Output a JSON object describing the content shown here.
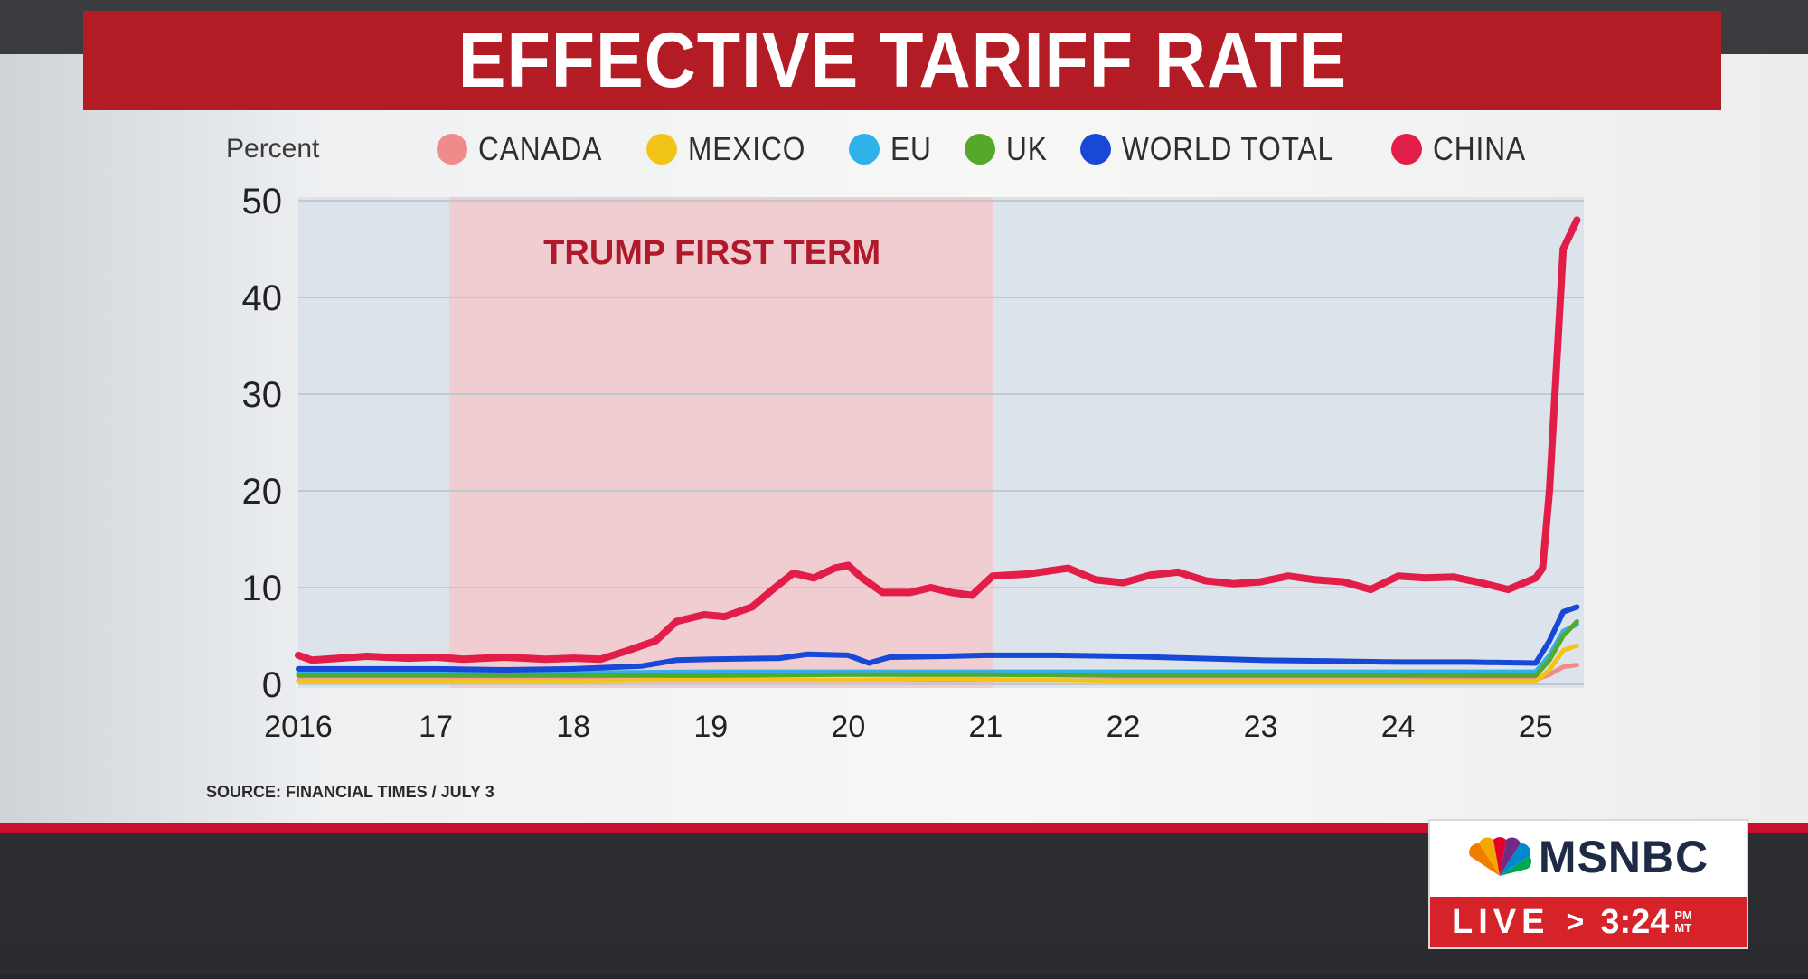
{
  "title": "EFFECTIVE TARIFF RATE",
  "unit_label": "Percent",
  "annotation": "TRUMP FIRST TERM",
  "source": "SOURCE: FINANCIAL TIMES / JULY 3",
  "logo": {
    "network": "MSNBC",
    "live": "LIVE",
    "arrow": ">",
    "time": "3:24",
    "ampm_top": "PM",
    "ampm_bottom": "MT"
  },
  "colors": {
    "title_banner": "#b31b25",
    "shaded_region": "#f2c9cc",
    "plot_background": "#dde3ea"
  },
  "legend": [
    {
      "name": "CANADA",
      "color": "#ef8b8b"
    },
    {
      "name": "MEXICO",
      "color": "#f2c418"
    },
    {
      "name": "EU",
      "color": "#2fb2ea"
    },
    {
      "name": "UK",
      "color": "#56a82a"
    },
    {
      "name": "WORLD TOTAL",
      "color": "#1748d6"
    },
    {
      "name": "CHINA",
      "color": "#e11d48"
    }
  ],
  "chart_data": {
    "type": "line",
    "title": "EFFECTIVE TARIFF RATE",
    "ylabel": "Percent",
    "xlim": [
      2016,
      2025.35
    ],
    "ylim": [
      0,
      50
    ],
    "yticks": [
      0,
      10,
      20,
      30,
      40,
      50
    ],
    "xticks": [
      {
        "value": 2016,
        "label": "2016"
      },
      {
        "value": 2017,
        "label": "17"
      },
      {
        "value": 2018,
        "label": "18"
      },
      {
        "value": 2019,
        "label": "19"
      },
      {
        "value": 2020,
        "label": "20"
      },
      {
        "value": 2021,
        "label": "21"
      },
      {
        "value": 2022,
        "label": "22"
      },
      {
        "value": 2023,
        "label": "23"
      },
      {
        "value": 2024,
        "label": "24"
      },
      {
        "value": 2025,
        "label": "25"
      }
    ],
    "grid": true,
    "legend_position": "top",
    "shaded_regions": [
      {
        "start": 2017.1,
        "end": 2021.05,
        "label": "TRUMP FIRST TERM"
      }
    ],
    "series": [
      {
        "name": "CANADA",
        "color": "#ef8b8b",
        "x": [
          2016,
          2017,
          2018,
          2019,
          2020,
          2021,
          2022,
          2023,
          2024,
          2025,
          2025.1,
          2025.2,
          2025.3
        ],
        "y": [
          0.4,
          0.4,
          0.4,
          0.4,
          0.4,
          0.4,
          0.4,
          0.4,
          0.4,
          0.5,
          1.0,
          1.8,
          2.0
        ]
      },
      {
        "name": "MEXICO",
        "color": "#f2c418",
        "x": [
          2016,
          2017,
          2018,
          2018.5,
          2019,
          2020,
          2020.7,
          2021,
          2022,
          2023,
          2024,
          2025,
          2025.1,
          2025.2,
          2025.3
        ],
        "y": [
          0.3,
          0.3,
          0.3,
          0.4,
          0.5,
          0.4,
          0.6,
          0.5,
          0.3,
          0.3,
          0.3,
          0.3,
          1.5,
          3.5,
          4.0
        ]
      },
      {
        "name": "EU",
        "color": "#2fb2ea",
        "x": [
          2016,
          2017,
          2018,
          2019,
          2020,
          2021,
          2022,
          2023,
          2024,
          2025,
          2025.1,
          2025.2,
          2025.3
        ],
        "y": [
          1.2,
          1.2,
          1.2,
          1.3,
          1.3,
          1.3,
          1.3,
          1.3,
          1.3,
          1.3,
          3.0,
          5.5,
          6.2
        ]
      },
      {
        "name": "UK",
        "color": "#56a82a",
        "x": [
          2016,
          2017,
          2018,
          2019,
          2020,
          2021,
          2022,
          2023,
          2024,
          2025,
          2025.1,
          2025.2,
          2025.3
        ],
        "y": [
          0.9,
          0.9,
          0.9,
          0.9,
          1.0,
          1.0,
          0.9,
          0.9,
          0.9,
          0.9,
          2.5,
          5.0,
          6.5
        ]
      },
      {
        "name": "WORLD TOTAL",
        "color": "#1748d6",
        "x": [
          2016,
          2016.5,
          2017,
          2017.5,
          2018,
          2018.5,
          2018.75,
          2019,
          2019.5,
          2019.7,
          2020,
          2020.15,
          2020.3,
          2020.7,
          2021,
          2021.5,
          2022,
          2022.5,
          2023,
          2023.5,
          2024,
          2024.5,
          2025,
          2025.1,
          2025.2,
          2025.3
        ],
        "y": [
          1.6,
          1.6,
          1.6,
          1.5,
          1.6,
          1.9,
          2.5,
          2.6,
          2.7,
          3.1,
          3.0,
          2.2,
          2.8,
          2.9,
          3.0,
          3.0,
          2.9,
          2.7,
          2.5,
          2.4,
          2.3,
          2.3,
          2.2,
          4.5,
          7.5,
          8.0
        ]
      },
      {
        "name": "CHINA",
        "color": "#e11d48",
        "x": [
          2016,
          2016.1,
          2016.5,
          2016.8,
          2017,
          2017.2,
          2017.5,
          2017.8,
          2018,
          2018.2,
          2018.4,
          2018.6,
          2018.75,
          2018.95,
          2019.1,
          2019.3,
          2019.45,
          2019.6,
          2019.75,
          2019.9,
          2020,
          2020.1,
          2020.25,
          2020.45,
          2020.6,
          2020.75,
          2020.9,
          2021.05,
          2021.3,
          2021.6,
          2021.8,
          2022,
          2022.2,
          2022.4,
          2022.6,
          2022.8,
          2023,
          2023.2,
          2023.4,
          2023.6,
          2023.8,
          2024,
          2024.2,
          2024.4,
          2024.6,
          2024.8,
          2025,
          2025.05,
          2025.1,
          2025.2,
          2025.3
        ],
        "y": [
          3.0,
          2.5,
          2.9,
          2.7,
          2.8,
          2.6,
          2.8,
          2.6,
          2.7,
          2.6,
          3.5,
          4.5,
          6.5,
          7.2,
          7.0,
          8.0,
          9.8,
          11.5,
          11.0,
          12.0,
          12.3,
          11.0,
          9.5,
          9.5,
          10.0,
          9.5,
          9.2,
          11.2,
          11.4,
          12.0,
          10.8,
          10.5,
          11.3,
          11.6,
          10.7,
          10.4,
          10.6,
          11.2,
          10.8,
          10.6,
          9.8,
          11.2,
          11.0,
          11.1,
          10.5,
          9.8,
          11.0,
          12.0,
          20.0,
          45.0,
          48.0
        ]
      }
    ]
  }
}
